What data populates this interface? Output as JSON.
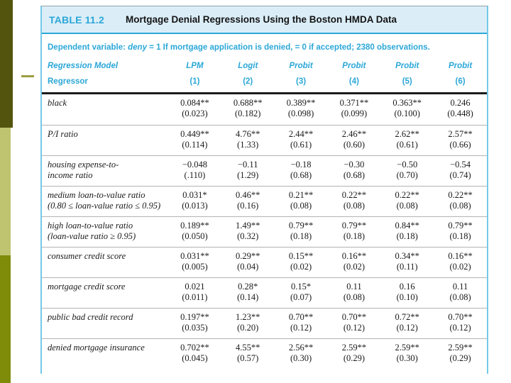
{
  "slide": {
    "accent_bars": {
      "top_color": "#53550e",
      "middle_color": "#bec46f",
      "bottom_color": "#7e8c09"
    },
    "bullet_dash_color": "#9d9d42"
  },
  "table": {
    "accent_color": "#2ba7d7",
    "band_bg": "#dbeef8",
    "label": "TABLE 11.2",
    "title": "Mortgage Denial Regressions Using the Boston HMDA Data",
    "note": {
      "prefix": "Dependent variable: ",
      "variable": "deny",
      "rest": " = 1 If mortgage application is denied, = 0 if accepted; 2380 observations."
    },
    "header": {
      "model_label": "Regression Model",
      "regressor_label": "Regressor",
      "columns": [
        {
          "model": "LPM",
          "num": "(1)"
        },
        {
          "model": "Logit",
          "num": "(2)"
        },
        {
          "model": "Probit",
          "num": "(3)"
        },
        {
          "model": "Probit",
          "num": "(4)"
        },
        {
          "model": "Probit",
          "num": "(5)"
        },
        {
          "model": "Probit",
          "num": "(6)"
        }
      ]
    },
    "rows": [
      {
        "label": "black",
        "label2": "",
        "values": [
          "0.084**",
          "0.688**",
          "0.389**",
          "0.371**",
          "0.363**",
          "0.246"
        ],
        "ses": [
          "(0.023)",
          "(0.182)",
          "(0.098)",
          "(0.099)",
          "(0.100)",
          "(0.448)"
        ]
      },
      {
        "label": "P/I ratio",
        "label2": "",
        "values": [
          "0.449**",
          "4.76**",
          "2.44**",
          "2.46**",
          "2.62**",
          "2.57**"
        ],
        "ses": [
          "(0.114)",
          "(1.33)",
          "(0.61)",
          "(0.60)",
          "(0.61)",
          "(0.66)"
        ]
      },
      {
        "label": "housing expense-to-",
        "label2": "income ratio",
        "values": [
          "−0.048",
          "−0.11",
          "−0.18",
          "−0.30",
          "−0.50",
          "−0.54"
        ],
        "ses": [
          "(.110)",
          "(1.29)",
          "(0.68)",
          "(0.68)",
          "(0.70)",
          "(0.74)"
        ]
      },
      {
        "label": "medium loan-to-value ratio",
        "label2": "(0.80 ≤ loan-value ratio ≤ 0.95)",
        "values": [
          "0.031*",
          "0.46**",
          "0.21**",
          "0.22**",
          "0.22**",
          "0.22**"
        ],
        "ses": [
          "(0.013)",
          "(0.16)",
          "(0.08)",
          "(0.08)",
          "(0.08)",
          "(0.08)"
        ]
      },
      {
        "label": "high loan-to-value ratio",
        "label2": "(loan-value ratio ≥ 0.95)",
        "values": [
          "0.189**",
          "1.49**",
          "0.79**",
          "0.79**",
          "0.84**",
          "0.79**"
        ],
        "ses": [
          "(0.050)",
          "(0.32)",
          "(0.18)",
          "(0.18)",
          "(0.18)",
          "(0.18)"
        ]
      },
      {
        "label": "consumer credit score",
        "label2": "",
        "values": [
          "0.031**",
          "0.29**",
          "0.15**",
          "0.16**",
          "0.34**",
          "0.16**"
        ],
        "ses": [
          "(0.005)",
          "(0.04)",
          "(0.02)",
          "(0.02)",
          "(0.11)",
          "(0.02)"
        ]
      },
      {
        "label": "mortgage credit score",
        "label2": "",
        "values": [
          "0.021",
          "0.28*",
          "0.15*",
          "0.11",
          "0.16",
          "0.11"
        ],
        "ses": [
          "(0.011)",
          "(0.14)",
          "(0.07)",
          "(0.08)",
          "(0.10)",
          "(0.08)"
        ]
      },
      {
        "label": "public bad credit record",
        "label2": "",
        "values": [
          "0.197**",
          "1.23**",
          "0.70**",
          "0.70**",
          "0.72**",
          "0.70**"
        ],
        "ses": [
          "(0.035)",
          "(0.20)",
          "(0.12)",
          "(0.12)",
          "(0.12)",
          "(0.12)"
        ]
      },
      {
        "label": "denied mortgage insurance",
        "label2": "",
        "values": [
          "0.702**",
          "4.55**",
          "2.56**",
          "2.59**",
          "2.59**",
          "2.59**"
        ],
        "ses": [
          "(0.045)",
          "(0.57)",
          "(0.30)",
          "(0.29)",
          "(0.30)",
          "(0.29)"
        ]
      }
    ]
  }
}
